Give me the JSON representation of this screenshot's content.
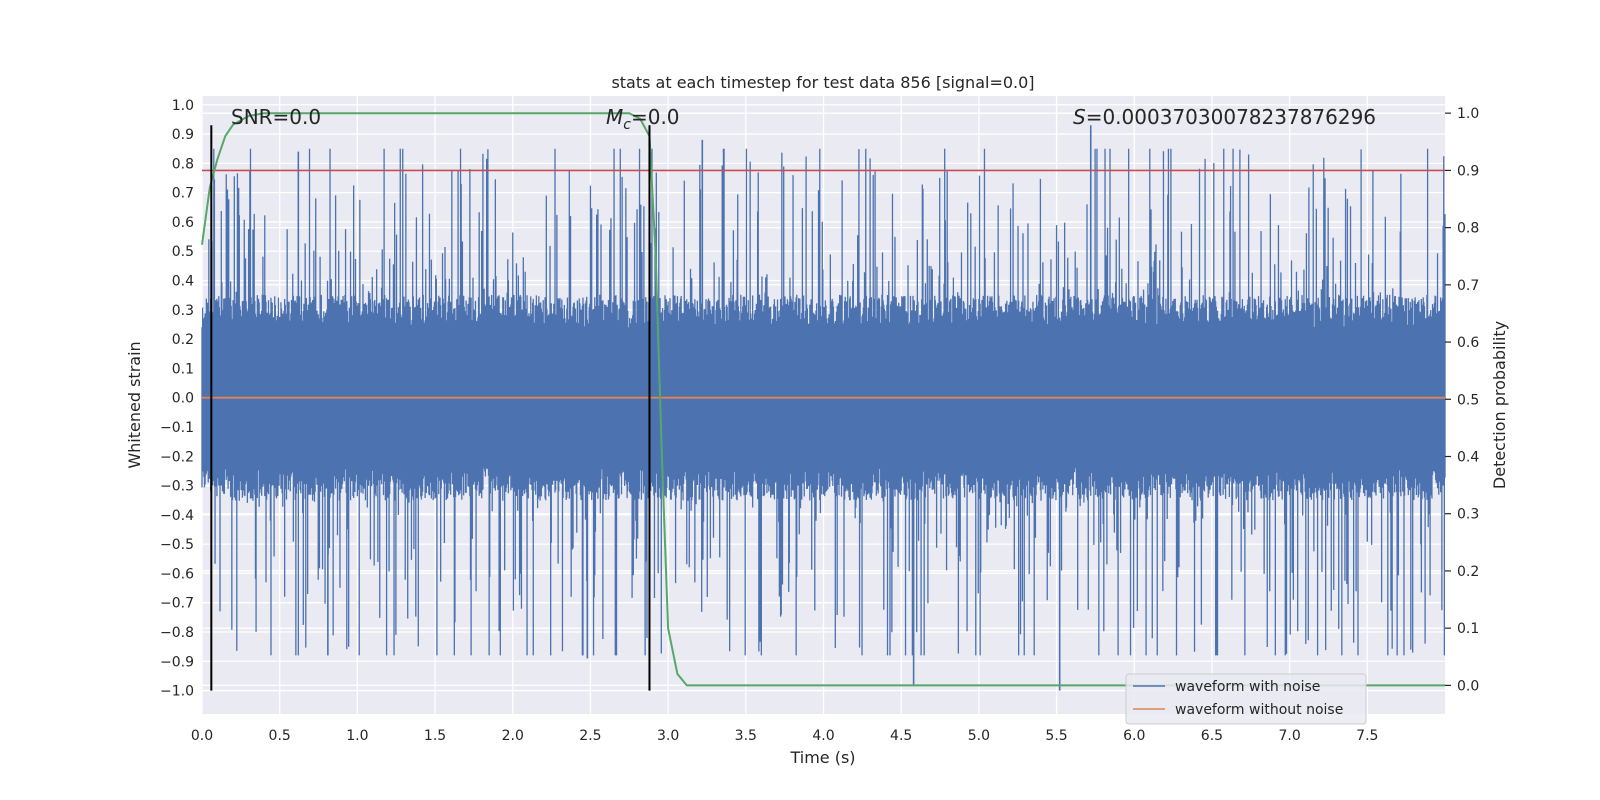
{
  "chart_data": {
    "type": "line",
    "title": "stats at each timestep for test data 856 [signal=0.0]",
    "xlabel": "Time (s)",
    "ylabel_left": "Whitened strain",
    "ylabel_right": "Detection probability",
    "xlim": [
      0,
      8
    ],
    "ylim_left": [
      -1.08,
      1.03
    ],
    "ylim_right": [
      -0.05,
      1.03
    ],
    "x_ticks": [
      "0.0",
      "0.5",
      "1.0",
      "1.5",
      "2.0",
      "2.5",
      "3.0",
      "3.5",
      "4.0",
      "4.5",
      "5.0",
      "5.5",
      "6.0",
      "6.5",
      "7.0",
      "7.5"
    ],
    "y_left_ticks": [
      "1.0",
      "0.9",
      "0.8",
      "0.7",
      "0.6",
      "0.5",
      "0.4",
      "0.3",
      "0.2",
      "0.1",
      "0.0",
      "−0.1",
      "−0.2",
      "−0.3",
      "−0.4",
      "−0.5",
      "−0.6",
      "−0.7",
      "−0.8",
      "−0.9",
      "−1.0"
    ],
    "y_right_ticks": [
      "1.0",
      "0.9",
      "0.8",
      "0.7",
      "0.6",
      "0.5",
      "0.4",
      "0.3",
      "0.2",
      "0.1",
      "0.0"
    ],
    "annotations": {
      "snr": "SNR=0.0",
      "mc_symbol": "M",
      "mc_sub": "c",
      "mc_value": "=0.0",
      "s_symbol": "S",
      "s_value": "=0.00037030078237876296"
    },
    "threshold": 0.9,
    "vlines_x": [
      0.06,
      2.88
    ],
    "vlines_ylim": [
      -1.0,
      0.93
    ],
    "strain_envelope": {
      "body_amplitude": 0.32,
      "spike_upper_max": 0.93,
      "spike_lower_min": -1.0,
      "notable_spikes": [
        {
          "x": 5.52,
          "y": -1.0
        },
        {
          "x": 4.58,
          "y": -0.98
        },
        {
          "x": 5.72,
          "y": 0.93
        },
        {
          "x": 0.62,
          "y": 0.84
        },
        {
          "x": 3.22,
          "y": 0.88
        },
        {
          "x": 0.81,
          "y": -0.88
        },
        {
          "x": 2.48,
          "y": -0.89
        }
      ]
    },
    "detection_probability": {
      "x": [
        0.0,
        0.05,
        0.1,
        0.15,
        0.2,
        0.3,
        0.4,
        0.6,
        1.0,
        2.0,
        2.6,
        2.75,
        2.82,
        2.88,
        2.92,
        2.96,
        3.0,
        3.06,
        3.12,
        3.5,
        8.0
      ],
      "y": [
        0.77,
        0.87,
        0.92,
        0.96,
        0.98,
        0.995,
        1.0,
        1.0,
        1.0,
        1.0,
        1.0,
        1.0,
        0.99,
        0.96,
        0.75,
        0.4,
        0.1,
        0.02,
        0.0,
        0.0,
        0.0
      ]
    },
    "series": [
      {
        "name": "waveform with noise",
        "color": "#4c72b0"
      },
      {
        "name": "waveform without noise",
        "color": "#dd8452"
      },
      {
        "name": "detection probability",
        "color": "#55a868"
      },
      {
        "name": "threshold",
        "color": "#c44e52"
      }
    ],
    "legend": {
      "placement": "lower-right",
      "entries": [
        "waveform with noise",
        "waveform without noise"
      ]
    }
  }
}
